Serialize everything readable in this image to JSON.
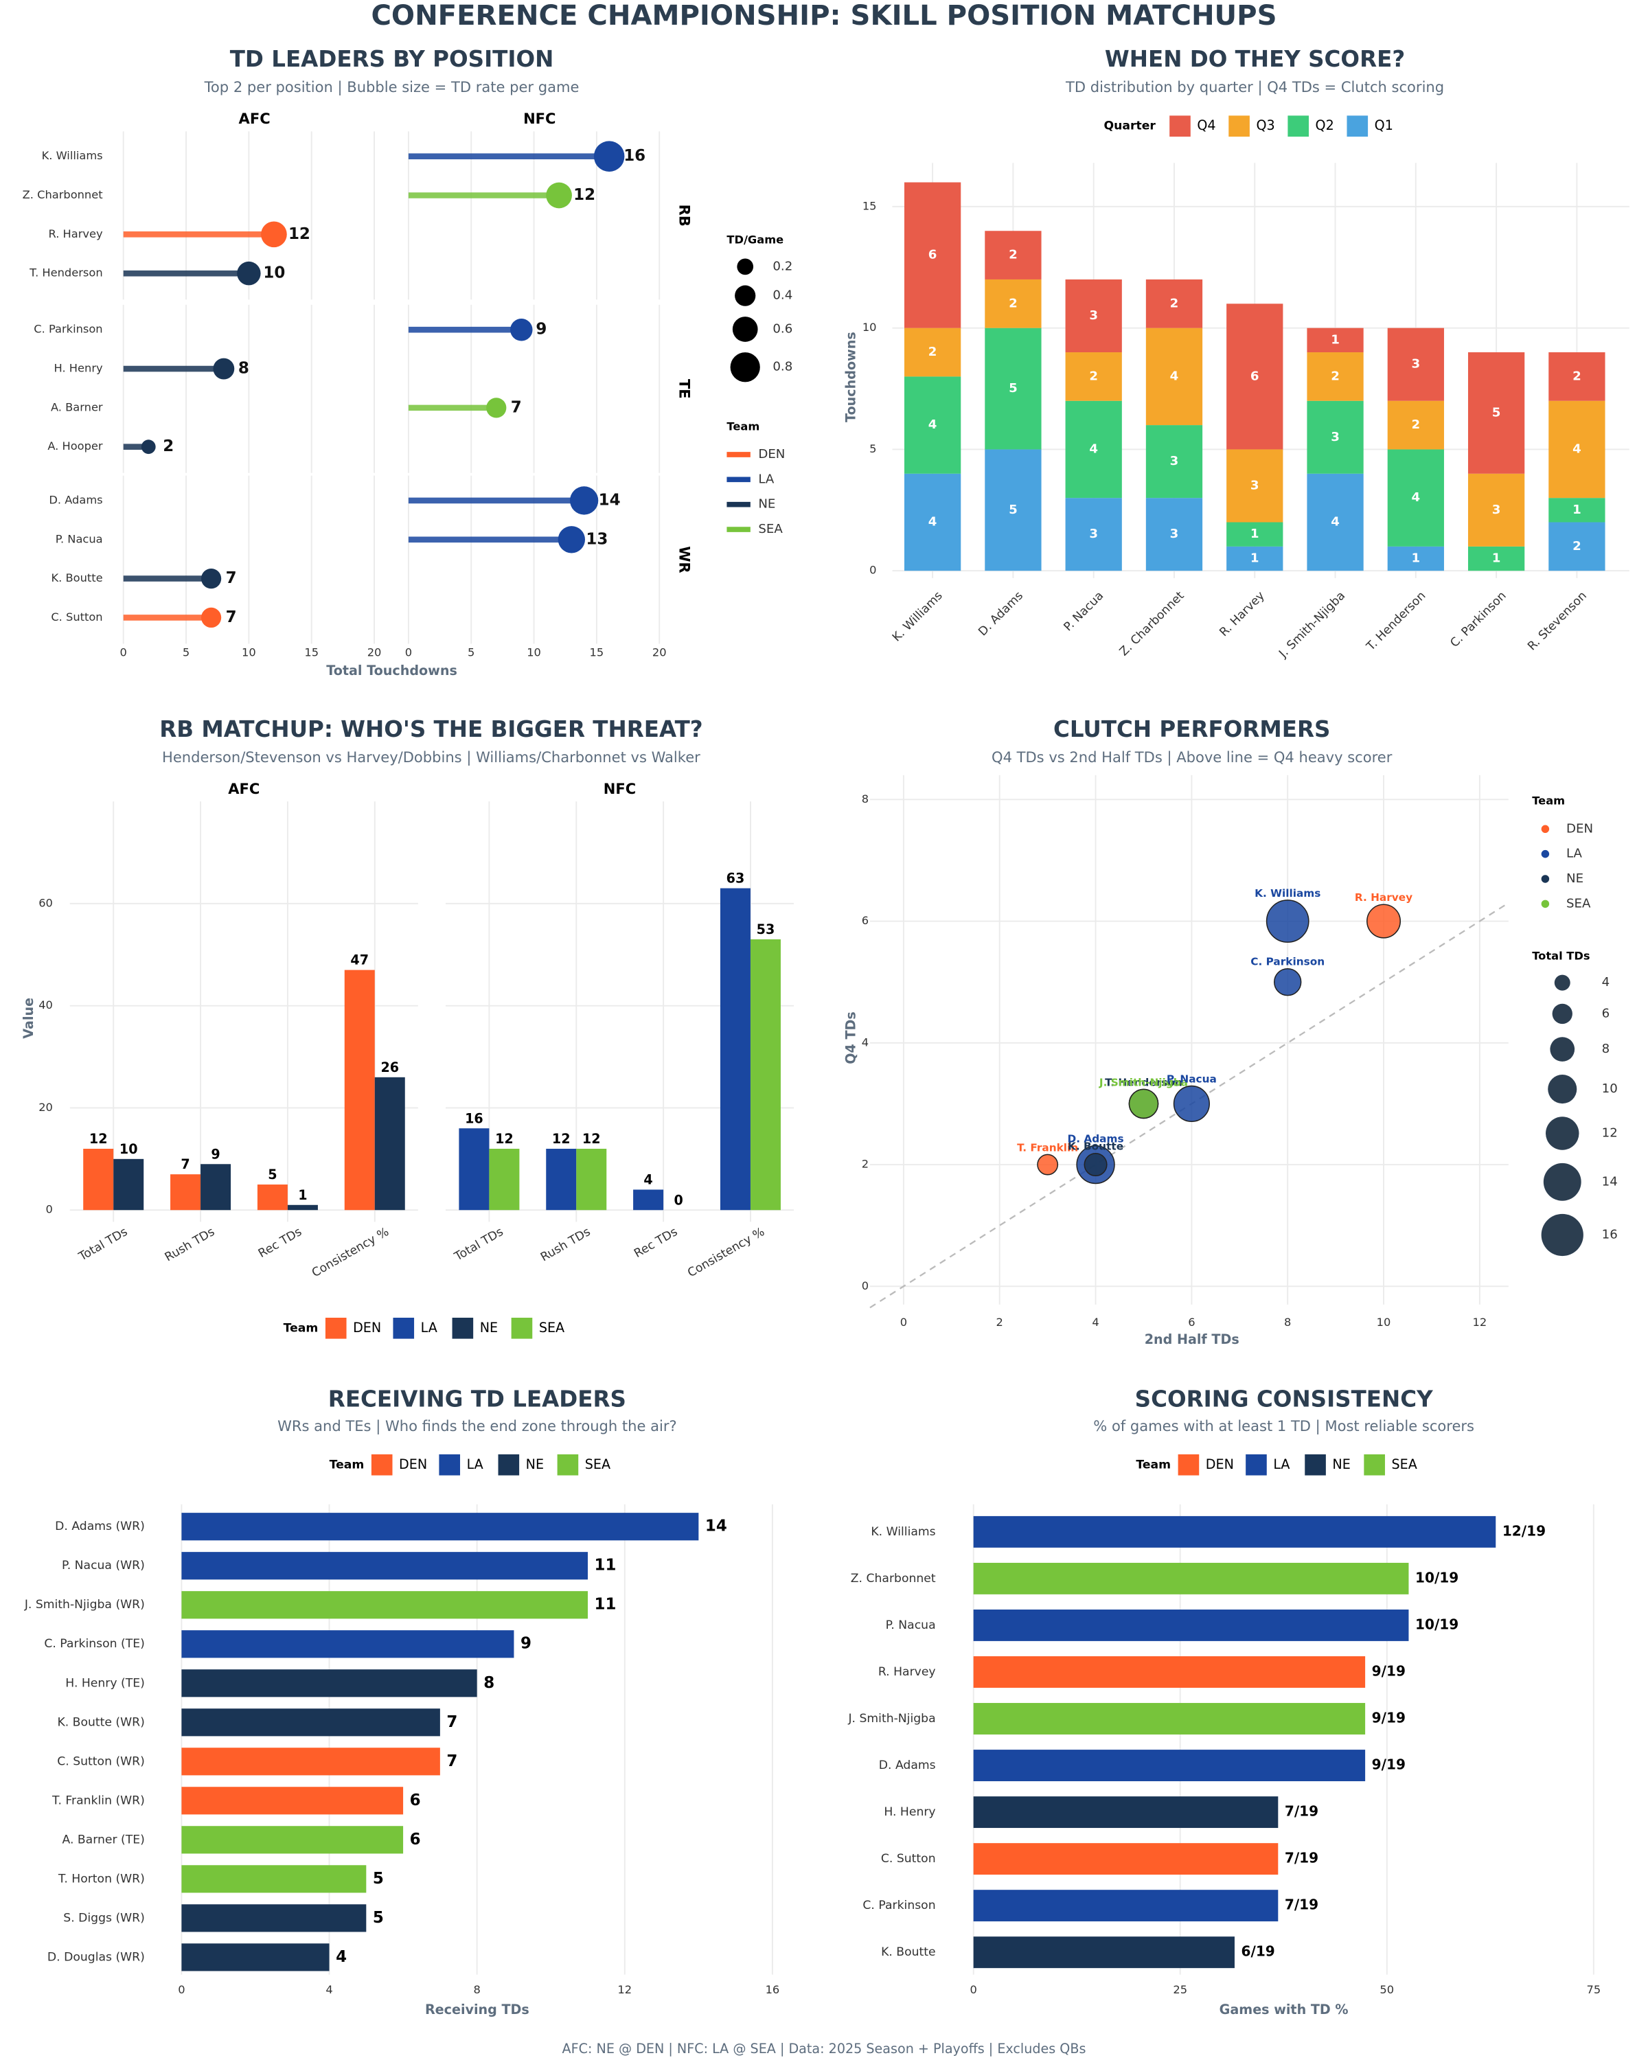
{
  "title": "CONFERENCE CHAMPIONSHIP: SKILL POSITION MATCHUPS",
  "footer": "AFC: NE @ DEN | NFC: LA @ SEA | Data: 2025 Season + Playoffs | Excludes QBs",
  "chart_data": [
    {
      "type": "lollipop",
      "title": "TD LEADERS BY POSITION",
      "subtitle": "Top 2 per position | Bubble size = TD rate per game",
      "xlabel": "Total Touchdowns",
      "facet_columns": [
        "AFC",
        "NFC"
      ],
      "facet_rows": [
        "RB",
        "TE",
        "WR"
      ],
      "players": [
        "K. Williams",
        "Z. Charbonnet",
        "R. Harvey",
        "T. Henderson",
        "C. Parkinson",
        "H. Henry",
        "A. Barner",
        "A. Hooper",
        "D. Adams",
        "P. Nacua",
        "K. Boutte",
        "C. Sutton"
      ],
      "conference": [
        "NFC",
        "NFC",
        "AFC",
        "AFC",
        "NFC",
        "AFC",
        "NFC",
        "AFC",
        "NFC",
        "NFC",
        "AFC",
        "AFC"
      ],
      "position": [
        "RB",
        "RB",
        "RB",
        "RB",
        "TE",
        "TE",
        "TE",
        "TE",
        "WR",
        "WR",
        "WR",
        "WR"
      ],
      "teams": [
        "LA",
        "SEA",
        "DEN",
        "NE",
        "LA",
        "NE",
        "SEA",
        "NE",
        "LA",
        "LA",
        "NE",
        "DEN"
      ],
      "values": [
        16,
        12,
        12,
        10,
        9,
        8,
        7,
        2,
        14,
        13,
        7,
        7
      ],
      "sizes": [
        0.84,
        0.63,
        0.63,
        0.53,
        0.47,
        0.42,
        0.37,
        0.11,
        0.74,
        0.68,
        0.37,
        0.37
      ],
      "xlim": [
        -0.6,
        21.5
      ],
      "xticks": [
        0,
        5,
        10,
        15,
        20
      ],
      "size_legend": {
        "title": "TD/Game",
        "values": [
          0.2,
          0.4,
          0.6,
          0.8
        ]
      },
      "legend": {
        "title": "Team",
        "names": [
          "DEN",
          "LA",
          "NE",
          "SEA"
        ],
        "colors": [
          "#ff5f29",
          "#1a47a0",
          "#1a3555",
          "#77c43b"
        ]
      }
    },
    {
      "type": "stacked_bar",
      "title": "WHEN DO THEY SCORE?",
      "subtitle": "TD distribution by quarter | Q4 TDs = Clutch scoring",
      "ylabel": "Touchdowns",
      "legend_title": "Quarter",
      "categories": [
        "K. Williams",
        "D. Adams",
        "P. Nacua",
        "Z. Charbonnet",
        "R. Harvey",
        "J. Smith-Njigba",
        "T. Henderson",
        "C. Parkinson",
        "R. Stevenson"
      ],
      "series": [
        {
          "name": "Q4",
          "color": "#e85c4a",
          "values": [
            6,
            2,
            3,
            2,
            6,
            1,
            3,
            5,
            2
          ]
        },
        {
          "name": "Q3",
          "color": "#f5a62b",
          "values": [
            2,
            2,
            2,
            4,
            3,
            2,
            2,
            3,
            4
          ]
        },
        {
          "name": "Q2",
          "color": "#3dcc7a",
          "values": [
            4,
            5,
            4,
            3,
            1,
            3,
            4,
            1,
            1
          ]
        },
        {
          "name": "Q1",
          "color": "#4aa3df",
          "values": [
            4,
            5,
            3,
            3,
            1,
            4,
            1,
            0,
            2
          ]
        }
      ],
      "ylim": [
        -0.3,
        16.8
      ],
      "yticks": [
        0,
        5,
        10,
        15
      ]
    },
    {
      "type": "grouped_bar",
      "title": "RB MATCHUP: WHO'S THE BIGGER THREAT?",
      "subtitle": "Henderson/Stevenson vs Harvey/Dobbins | Williams/Charbonnet vs Walker",
      "ylabel": "Value",
      "legend_title": "Team",
      "categories": [
        "Total TDs",
        "Rush TDs",
        "Rec TDs",
        "Consistency %"
      ],
      "panels": [
        {
          "title": "AFC",
          "series": [
            {
              "name": "DEN",
              "color": "#ff5f29",
              "values": [
                12,
                7,
                5,
                47
              ]
            },
            {
              "name": "NE",
              "color": "#1a3555",
              "values": [
                10,
                9,
                1,
                26
              ]
            }
          ]
        },
        {
          "title": "NFC",
          "series": [
            {
              "name": "LA",
              "color": "#1a47a0",
              "values": [
                16,
                12,
                4,
                63
              ]
            },
            {
              "name": "SEA",
              "color": "#77c43b",
              "values": [
                12,
                12,
                0,
                53
              ]
            }
          ]
        }
      ],
      "ylim": [
        -2.3,
        80
      ],
      "yticks": [
        0,
        20,
        40,
        60
      ]
    },
    {
      "type": "scatter",
      "title": "CLUTCH PERFORMERS",
      "subtitle": "Q4 TDs vs 2nd Half TDs | Above line = Q4 heavy scorer",
      "xlabel": "2nd Half TDs",
      "ylabel": "Q4 TDs",
      "names": [
        "K. Williams",
        "R. Harvey",
        "C. Parkinson",
        "T. Henderson",
        "J. Smith-Njigba",
        "P. Nacua",
        "T. Franklin",
        "D. Adams",
        "K. Boutte"
      ],
      "x": [
        8,
        10,
        8,
        5,
        5,
        6,
        3,
        4,
        4
      ],
      "y": [
        6,
        6,
        5,
        3,
        3,
        3,
        2,
        2,
        2
      ],
      "sizes": [
        16,
        12,
        9,
        10,
        10,
        13,
        6,
        14,
        7
      ],
      "teams": [
        "LA",
        "DEN",
        "LA",
        "NE",
        "SEA",
        "LA",
        "DEN",
        "LA",
        "NE"
      ],
      "reference_line": {
        "slope": 0.5
      },
      "xlim": [
        -0.7,
        12.6
      ],
      "xticks": [
        0,
        2,
        4,
        6,
        8,
        10,
        12
      ],
      "ylim": [
        -0.3,
        8.4
      ],
      "yticks": [
        0,
        2,
        4,
        6,
        8
      ],
      "legend": {
        "title": "Team",
        "names": [
          "DEN",
          "LA",
          "NE",
          "SEA"
        ],
        "colors": [
          "#ff5f29",
          "#1a47a0",
          "#1a3555",
          "#77c43b"
        ]
      },
      "size_legend": {
        "title": "Total TDs",
        "values": [
          4,
          6,
          8,
          10,
          12,
          14,
          16
        ]
      }
    },
    {
      "type": "barh",
      "title": "RECEIVING TD LEADERS",
      "subtitle": "WRs and TEs | Who finds the end zone through the air?",
      "xlabel": "Receiving TDs",
      "categories": [
        "D. Adams (WR)",
        "P. Nacua (WR)",
        "J. Smith-Njigba (WR)",
        "C. Parkinson (TE)",
        "H. Henry (TE)",
        "K. Boutte (WR)",
        "C. Sutton (WR)",
        "T. Franklin (WR)",
        "A. Barner (TE)",
        "T. Horton (WR)",
        "S. Diggs (WR)",
        "D. Douglas (WR)"
      ],
      "values": [
        14,
        11,
        11,
        9,
        8,
        7,
        7,
        6,
        6,
        5,
        5,
        4
      ],
      "teams": [
        "LA",
        "LA",
        "SEA",
        "LA",
        "NE",
        "NE",
        "DEN",
        "DEN",
        "SEA",
        "SEA",
        "NE",
        "NE"
      ],
      "xlim": [
        -0.64,
        16.4
      ],
      "xticks": [
        0,
        4,
        8,
        12,
        16
      ],
      "legend": {
        "title": "Team",
        "names": [
          "DEN",
          "LA",
          "NE",
          "SEA"
        ],
        "colors": [
          "#ff5f29",
          "#1a47a0",
          "#1a3555",
          "#77c43b"
        ]
      }
    },
    {
      "type": "barh",
      "title": "SCORING CONSISTENCY",
      "subtitle": "% of games with at least 1 TD | Most reliable scorers",
      "xlabel": "Games with TD %",
      "categories": [
        "K. Williams",
        "Z. Charbonnet",
        "P. Nacua",
        "R. Harvey",
        "J. Smith-Njigba",
        "D. Adams",
        "H. Henry",
        "C. Sutton",
        "C. Parkinson",
        "K. Boutte"
      ],
      "values": [
        63.16,
        52.63,
        52.63,
        47.37,
        47.37,
        47.37,
        36.84,
        36.84,
        36.84,
        31.58
      ],
      "value_labels": [
        "12/19",
        "10/19",
        "10/19",
        "9/19",
        "9/19",
        "9/19",
        "7/19",
        "7/19",
        "7/19",
        "6/19"
      ],
      "teams": [
        "LA",
        "SEA",
        "LA",
        "DEN",
        "SEA",
        "LA",
        "NE",
        "DEN",
        "LA",
        "NE"
      ],
      "xlim": [
        -3.3,
        79
      ],
      "xticks": [
        0,
        25,
        50,
        75
      ],
      "legend": {
        "title": "Team",
        "names": [
          "DEN",
          "LA",
          "NE",
          "SEA"
        ],
        "colors": [
          "#ff5f29",
          "#1a47a0",
          "#1a3555",
          "#77c43b"
        ]
      }
    }
  ]
}
